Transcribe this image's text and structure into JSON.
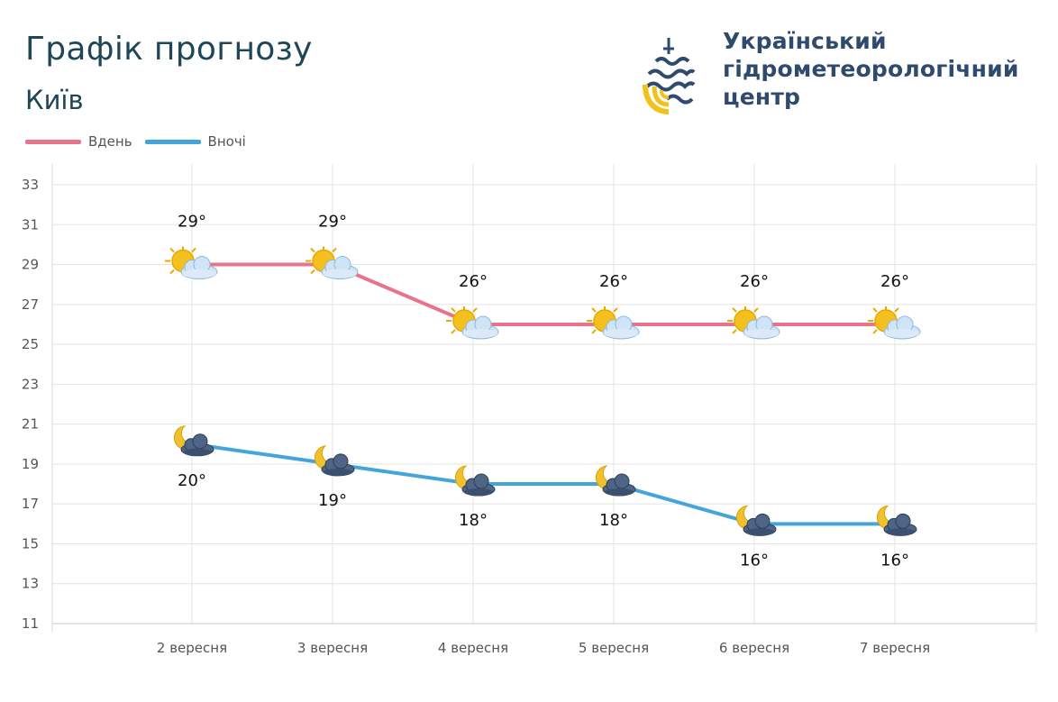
{
  "header": {
    "title": "Графік прогнозу",
    "city": "Київ",
    "org_line1": "Український",
    "org_line2": "гідрометеорологічний",
    "org_line3": "центр"
  },
  "colors": {
    "day": "#e8748c",
    "night": "#45a4dc",
    "brand": "#2e4a6c",
    "title": "#1e4656",
    "sun": "#f4c020",
    "moon": "#f0c030"
  },
  "chart_data": {
    "type": "line",
    "x": [
      "2 вересня",
      "3 вересня",
      "4 вересня",
      "5 вересня",
      "6 вересня",
      "7 вересня"
    ],
    "series": [
      {
        "name": "Вдень",
        "values": [
          29,
          29,
          26,
          26,
          26,
          26
        ],
        "labels": [
          "29°",
          "29°",
          "26°",
          "26°",
          "26°",
          "26°"
        ],
        "icon": "sun-cloud-icon"
      },
      {
        "name": "Вночі",
        "values": [
          20,
          19,
          18,
          18,
          16,
          16
        ],
        "labels": [
          "20°",
          "19°",
          "18°",
          "18°",
          "16°",
          "16°"
        ],
        "icon": "moon-cloud-icon"
      }
    ],
    "yticks": [
      "33",
      "31",
      "29",
      "27",
      "25",
      "23",
      "21",
      "19",
      "17",
      "15",
      "13",
      "11"
    ],
    "ylim": [
      11,
      33
    ],
    "grid": true,
    "legend": "top-left"
  }
}
